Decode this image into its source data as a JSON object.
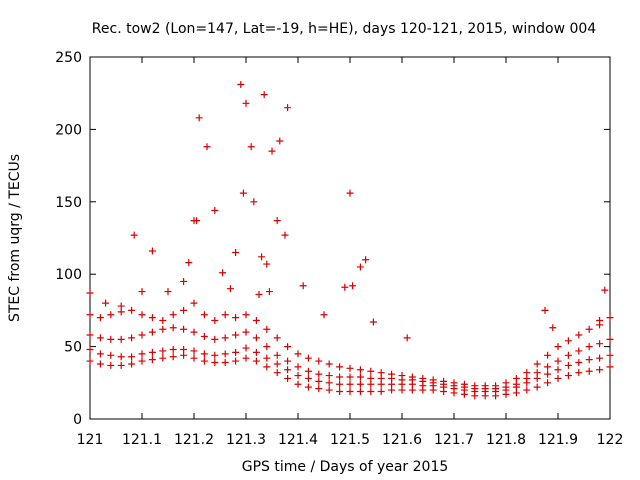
{
  "chart_data": {
    "type": "scatter",
    "title": "Rec. tow2 (Lon=147, Lat=-19, h=HE), days 120-121, 2015, window 004",
    "xlabel": "GPS time / Days of year 2015",
    "ylabel": "STEC from uqrg / TECUs",
    "xlim": [
      121,
      122
    ],
    "ylim": [
      0,
      250
    ],
    "xticks": [
      "121",
      "121.1",
      "121.2",
      "121.3",
      "121.4",
      "121.5",
      "121.6",
      "121.7",
      "121.8",
      "121.9",
      "122"
    ],
    "yticks": [
      "0",
      "50",
      "100",
      "150",
      "200",
      "250"
    ],
    "grid": false,
    "legend": "none",
    "marker": "plus",
    "color": "#dd0000",
    "series": [
      {
        "x": [
          121.0,
          121.02,
          121.04,
          121.06,
          121.08,
          121.1,
          121.12,
          121.14,
          121.16,
          121.18,
          121.2,
          121.22,
          121.24,
          121.26,
          121.28,
          121.3,
          121.32,
          121.34,
          121.36,
          121.38,
          121.4,
          121.42,
          121.44,
          121.46,
          121.48,
          121.5,
          121.52,
          121.54,
          121.56,
          121.58,
          121.6,
          121.62,
          121.64,
          121.66,
          121.68,
          121.7,
          121.72,
          121.74,
          121.76,
          121.78,
          121.8,
          121.82,
          121.84,
          121.86,
          121.88,
          121.9,
          121.92,
          121.94,
          121.96,
          121.98,
          122.0
        ],
        "values": [
          40,
          38,
          37,
          37,
          38,
          40,
          41,
          42,
          43,
          44,
          42,
          40,
          39,
          39,
          40,
          42,
          40,
          36,
          32,
          28,
          24,
          22,
          21,
          20,
          19,
          19,
          19,
          19,
          19,
          20,
          20,
          20,
          20,
          20,
          19,
          18,
          17,
          16,
          16,
          16,
          17,
          18,
          20,
          22,
          25,
          28,
          30,
          32,
          33,
          34,
          36
        ]
      },
      {
        "x": [
          121.0,
          121.02,
          121.04,
          121.06,
          121.08,
          121.1,
          121.12,
          121.14,
          121.16,
          121.18,
          121.2,
          121.22,
          121.24,
          121.26,
          121.28,
          121.3,
          121.32,
          121.34,
          121.36,
          121.38,
          121.4,
          121.42,
          121.44,
          121.46,
          121.48,
          121.5,
          121.52,
          121.54,
          121.56,
          121.58,
          121.6,
          121.62,
          121.64,
          121.66,
          121.68,
          121.7,
          121.72,
          121.74,
          121.76,
          121.78,
          121.8,
          121.82,
          121.84,
          121.86,
          121.88,
          121.9,
          121.92,
          121.94,
          121.96,
          121.98,
          122.0
        ],
        "values": [
          48,
          45,
          44,
          43,
          43,
          45,
          46,
          47,
          48,
          48,
          47,
          45,
          44,
          45,
          46,
          49,
          46,
          42,
          38,
          34,
          30,
          28,
          26,
          25,
          24,
          24,
          24,
          24,
          24,
          24,
          24,
          24,
          23,
          23,
          22,
          21,
          20,
          19,
          19,
          19,
          20,
          22,
          25,
          28,
          31,
          34,
          37,
          39,
          41,
          42,
          44
        ]
      },
      {
        "x": [
          121.0,
          121.02,
          121.04,
          121.06,
          121.08,
          121.1,
          121.12,
          121.14,
          121.16,
          121.18,
          121.2,
          121.22,
          121.24,
          121.26,
          121.28,
          121.3,
          121.32,
          121.34,
          121.36,
          121.38,
          121.4,
          121.42,
          121.44,
          121.46,
          121.48,
          121.5,
          121.52,
          121.54,
          121.56,
          121.58,
          121.6,
          121.62,
          121.64,
          121.66,
          121.68,
          121.7,
          121.72,
          121.74,
          121.76,
          121.78,
          121.8,
          121.82,
          121.84,
          121.86,
          121.88,
          121.9,
          121.92,
          121.94,
          121.96,
          121.98,
          122.0
        ],
        "values": [
          58,
          56,
          55,
          55,
          56,
          58,
          60,
          62,
          63,
          62,
          60,
          57,
          55,
          56,
          58,
          60,
          56,
          50,
          44,
          40,
          36,
          33,
          31,
          30,
          29,
          29,
          29,
          28,
          28,
          28,
          27,
          27,
          26,
          25,
          24,
          23,
          22,
          21,
          21,
          21,
          22,
          24,
          28,
          32,
          36,
          40,
          44,
          47,
          50,
          52,
          55
        ]
      },
      {
        "x": [
          121.0,
          121.02,
          121.04,
          121.06,
          121.08,
          121.1,
          121.12,
          121.14,
          121.16,
          121.18,
          121.2,
          121.22,
          121.24,
          121.26,
          121.28,
          121.3,
          121.32,
          121.34,
          121.36,
          121.38,
          121.4,
          121.42,
          121.44,
          121.46,
          121.48,
          121.5,
          121.52,
          121.54,
          121.56,
          121.58,
          121.6,
          121.62,
          121.64,
          121.66,
          121.68,
          121.7,
          121.72,
          121.74,
          121.76,
          121.78,
          121.8,
          121.82,
          121.84,
          121.86,
          121.88,
          121.9,
          121.92,
          121.94,
          121.96,
          121.98,
          122.0
        ],
        "values": [
          72,
          70,
          72,
          74,
          75,
          72,
          70,
          68,
          72,
          75,
          80,
          72,
          68,
          72,
          70,
          72,
          68,
          62,
          56,
          50,
          45,
          42,
          40,
          38,
          36,
          35,
          34,
          33,
          32,
          31,
          30,
          29,
          28,
          27,
          26,
          25,
          24,
          23,
          23,
          23,
          25,
          28,
          32,
          38,
          44,
          50,
          54,
          58,
          62,
          65,
          70
        ]
      },
      {
        "x": [
          121.0,
          121.03,
          121.06,
          121.085,
          121.1,
          121.12,
          121.15,
          121.18,
          121.19,
          121.2,
          121.205,
          121.21,
          121.225,
          121.24,
          121.255,
          121.27,
          121.28,
          121.29,
          121.295,
          121.3,
          121.31,
          121.315,
          121.325,
          121.33,
          121.335,
          121.34,
          121.345,
          121.35,
          121.36,
          121.365,
          121.375,
          121.38,
          121.41,
          121.45,
          121.49,
          121.5,
          121.505,
          121.52,
          121.53,
          121.545,
          121.61,
          121.875,
          121.89,
          121.98,
          121.99
        ],
        "values": [
          87,
          80,
          78,
          127,
          88,
          116,
          88,
          95,
          108,
          137,
          137,
          208,
          188,
          144,
          101,
          90,
          115,
          231,
          156,
          218,
          188,
          150,
          86,
          112,
          224,
          107,
          88,
          185,
          137,
          192,
          127,
          215,
          92,
          72,
          91,
          156,
          92,
          105,
          110,
          67,
          56,
          75,
          63,
          68,
          89
        ]
      }
    ]
  }
}
